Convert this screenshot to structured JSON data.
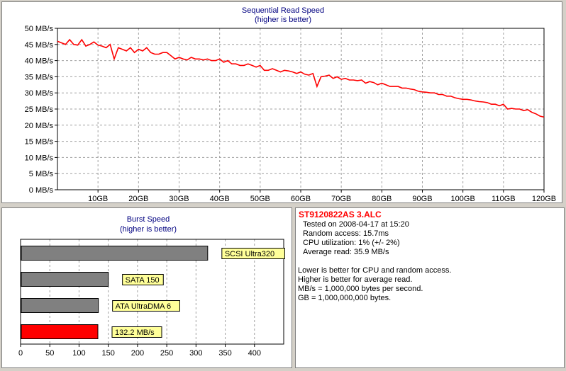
{
  "chart_data": [
    {
      "type": "line",
      "title": "Sequential Read Speed",
      "subtitle": "(higher is better)",
      "xlim": [
        0,
        120
      ],
      "ylim": [
        0,
        50
      ],
      "x_ticks": [
        10,
        20,
        30,
        40,
        50,
        60,
        70,
        80,
        90,
        100,
        110,
        120
      ],
      "x_tick_labels": [
        "10GB",
        "20GB",
        "30GB",
        "40GB",
        "50GB",
        "60GB",
        "70GB",
        "80GB",
        "90GB",
        "100GB",
        "110GB",
        "120GB"
      ],
      "y_ticks": [
        0,
        5,
        10,
        15,
        20,
        25,
        30,
        35,
        40,
        45,
        50
      ],
      "y_tick_labels": [
        "0 MB/s",
        "5 MB/s",
        "10 MB/s",
        "15 MB/s",
        "20 MB/s",
        "25 MB/s",
        "30 MB/s",
        "35 MB/s",
        "40 MB/s",
        "45 MB/s",
        "50 MB/s"
      ],
      "grid": true,
      "series": [
        {
          "color": "#ff0000",
          "x": [
            0,
            1,
            2,
            3,
            4,
            5,
            6,
            7,
            8,
            9,
            10,
            11,
            12,
            13,
            14,
            15,
            16,
            17,
            18,
            19,
            20,
            21,
            22,
            23,
            24,
            25,
            26,
            27,
            28,
            29,
            30,
            31,
            32,
            33,
            34,
            35,
            36,
            37,
            38,
            39,
            40,
            41,
            42,
            43,
            44,
            45,
            46,
            47,
            48,
            49,
            50,
            51,
            52,
            53,
            54,
            55,
            56,
            57,
            58,
            59,
            60,
            61,
            62,
            63,
            64,
            65,
            66,
            67,
            68,
            69,
            70,
            71,
            72,
            73,
            74,
            75,
            76,
            77,
            78,
            79,
            80,
            81,
            82,
            83,
            84,
            85,
            86,
            87,
            88,
            89,
            90,
            91,
            92,
            93,
            94,
            95,
            96,
            97,
            98,
            99,
            100,
            101,
            102,
            103,
            104,
            105,
            106,
            107,
            108,
            109,
            110,
            111,
            112,
            113,
            114,
            115,
            116,
            117,
            118,
            119,
            120
          ],
          "y": [
            46,
            45.5,
            45,
            46.5,
            45,
            44.8,
            46.5,
            44.5,
            45,
            45.8,
            44.8,
            44.5,
            44,
            45,
            40.5,
            44,
            43.5,
            43,
            44,
            42.5,
            43.5,
            43,
            44,
            42.5,
            42,
            42,
            42.5,
            42.5,
            41.5,
            40.5,
            41,
            40.5,
            40.2,
            41,
            40.5,
            40.5,
            40.2,
            40.5,
            40,
            40,
            40.5,
            39.5,
            40,
            39,
            39,
            38.5,
            38.5,
            39,
            38.5,
            38,
            38.5,
            37,
            37,
            37.5,
            37,
            36.5,
            37,
            36.8,
            36.5,
            36,
            36.5,
            35.8,
            35.5,
            36,
            32,
            35,
            35.2,
            35.5,
            34.5,
            35,
            34.2,
            34.5,
            34,
            34,
            33.8,
            34,
            33,
            33.5,
            33.2,
            32.5,
            33,
            32.5,
            32,
            32,
            32,
            31.5,
            31.5,
            31.2,
            31,
            30.5,
            30.3,
            30.2,
            30,
            30,
            29.5,
            29.5,
            29,
            29,
            28.5,
            28.2,
            28,
            28,
            27.8,
            27.5,
            27.3,
            27.2,
            27,
            26.5,
            26.5,
            26,
            26.5,
            25,
            25.2,
            25,
            25,
            24.5,
            24.8,
            24,
            23.5,
            22.8,
            22.5
          ]
        }
      ]
    },
    {
      "type": "bar",
      "orientation": "horizontal",
      "title": "Burst Speed",
      "subtitle": "(higher is better)",
      "xlim": [
        0,
        450
      ],
      "x_ticks": [
        0,
        50,
        100,
        150,
        200,
        250,
        300,
        350,
        400
      ],
      "grid": true,
      "bars": [
        {
          "label": "SCSI Ultra320",
          "value": 320,
          "color": "#808080"
        },
        {
          "label": "SATA 150",
          "value": 150,
          "color": "#808080"
        },
        {
          "label": "ATA UltraDMA 6",
          "value": 133,
          "color": "#808080"
        },
        {
          "label": "132.2 MB/s",
          "value": 132.2,
          "color": "#ff0000"
        }
      ]
    }
  ],
  "info": {
    "title": "ST9120822AS 3.ALC",
    "lines": [
      "Tested on 2008-04-17 at 15:20",
      "Random access: 15.7ms",
      "CPU utilization: 1% (+/- 2%)",
      "Average read: 35.9 MB/s"
    ],
    "notes": [
      "Lower is better for CPU and random access.",
      "Higher is better for average read.",
      "MB/s = 1,000,000 bytes per second.",
      "GB = 1,000,000,000 bytes."
    ]
  }
}
